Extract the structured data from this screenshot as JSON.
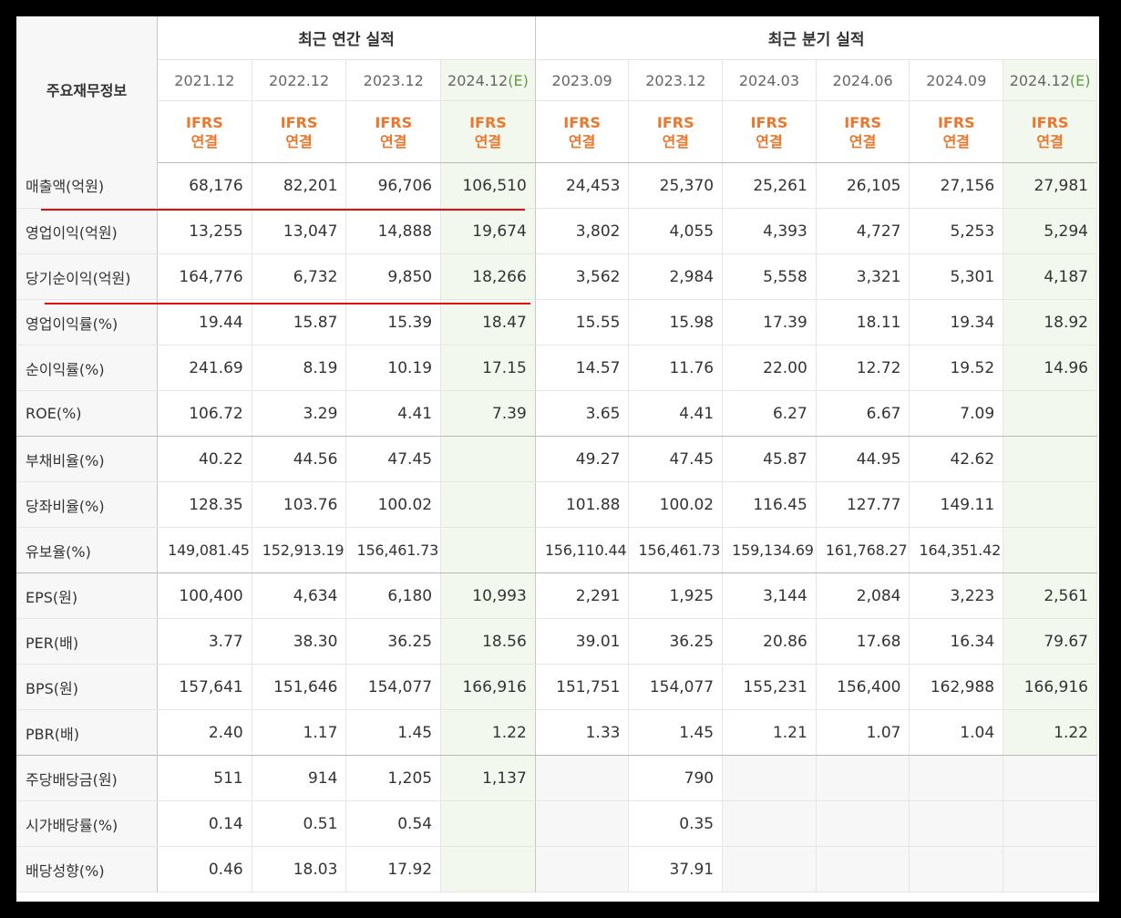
{
  "table": {
    "corner_label": "주요재무정보",
    "annual_group": "최근 연간 실적",
    "quarter_group": "최근 분기 실적",
    "ifrs_line1": "IFRS",
    "ifrs_line2": "연결",
    "annual_periods": [
      "2021.12",
      "2022.12",
      "2023.12",
      "2024.12"
    ],
    "annual_est_marks": [
      "",
      "",
      "",
      "(E)"
    ],
    "quarter_periods": [
      "2023.09",
      "2023.12",
      "2024.03",
      "2024.06",
      "2024.09",
      "2024.12"
    ],
    "quarter_est_marks": [
      "",
      "",
      "",
      "",
      "",
      "(E)"
    ],
    "rows": [
      {
        "label": "매출액(억원)",
        "values": [
          "68,176",
          "82,201",
          "96,706",
          "106,510",
          "24,453",
          "25,370",
          "25,261",
          "26,105",
          "27,156",
          "27,981"
        ]
      },
      {
        "label": "영업이익(억원)",
        "values": [
          "13,255",
          "13,047",
          "14,888",
          "19,674",
          "3,802",
          "4,055",
          "4,393",
          "4,727",
          "5,253",
          "5,294"
        ]
      },
      {
        "label": "당기순이익(억원)",
        "values": [
          "164,776",
          "6,732",
          "9,850",
          "18,266",
          "3,562",
          "2,984",
          "5,558",
          "3,321",
          "5,301",
          "4,187"
        ]
      },
      {
        "label": "영업이익률(%)",
        "values": [
          "19.44",
          "15.87",
          "15.39",
          "18.47",
          "15.55",
          "15.98",
          "17.39",
          "18.11",
          "19.34",
          "18.92"
        ]
      },
      {
        "label": "순이익률(%)",
        "values": [
          "241.69",
          "8.19",
          "10.19",
          "17.15",
          "14.57",
          "11.76",
          "22.00",
          "12.72",
          "19.52",
          "14.96"
        ]
      },
      {
        "label": "ROE(%)",
        "values": [
          "106.72",
          "3.29",
          "4.41",
          "7.39",
          "3.65",
          "4.41",
          "6.27",
          "6.67",
          "7.09",
          ""
        ]
      },
      {
        "label": "부채비율(%)",
        "values": [
          "40.22",
          "44.56",
          "47.45",
          "",
          "49.27",
          "47.45",
          "45.87",
          "44.95",
          "42.62",
          ""
        ]
      },
      {
        "label": "당좌비율(%)",
        "values": [
          "128.35",
          "103.76",
          "100.02",
          "",
          "101.88",
          "100.02",
          "116.45",
          "127.77",
          "149.11",
          ""
        ]
      },
      {
        "label": "유보율(%)",
        "values": [
          "149,081.45",
          "152,913.19",
          "156,461.73",
          "",
          "156,110.44",
          "156,461.73",
          "159,134.69",
          "161,768.27",
          "164,351.42",
          ""
        ]
      },
      {
        "label": "EPS(원)",
        "values": [
          "100,400",
          "4,634",
          "6,180",
          "10,993",
          "2,291",
          "1,925",
          "3,144",
          "2,084",
          "3,223",
          "2,561"
        ]
      },
      {
        "label": "PER(배)",
        "values": [
          "3.77",
          "38.30",
          "36.25",
          "18.56",
          "39.01",
          "36.25",
          "20.86",
          "17.68",
          "16.34",
          "79.67"
        ]
      },
      {
        "label": "BPS(원)",
        "values": [
          "157,641",
          "151,646",
          "154,077",
          "166,916",
          "151,751",
          "154,077",
          "155,231",
          "156,400",
          "162,988",
          "166,916"
        ]
      },
      {
        "label": "PBR(배)",
        "values": [
          "2.40",
          "1.17",
          "1.45",
          "1.22",
          "1.33",
          "1.45",
          "1.21",
          "1.07",
          "1.04",
          "1.22"
        ]
      },
      {
        "label": "주당배당금(원)",
        "values": [
          "511",
          "914",
          "1,205",
          "1,137",
          "",
          "790",
          "",
          "",
          "",
          ""
        ]
      },
      {
        "label": "시가배당률(%)",
        "values": [
          "0.14",
          "0.51",
          "0.54",
          "",
          "",
          "0.35",
          "",
          "",
          "",
          ""
        ]
      },
      {
        "label": "배당성향(%)",
        "values": [
          "0.46",
          "18.03",
          "17.92",
          "",
          "",
          "37.91",
          "",
          "",
          "",
          ""
        ]
      }
    ]
  },
  "colors": {
    "ifrs": "#e8782f",
    "estimate_text": "#5c9e3f",
    "estimate_bg": "#f3f8ef",
    "highlight_line": "#e01010"
  }
}
